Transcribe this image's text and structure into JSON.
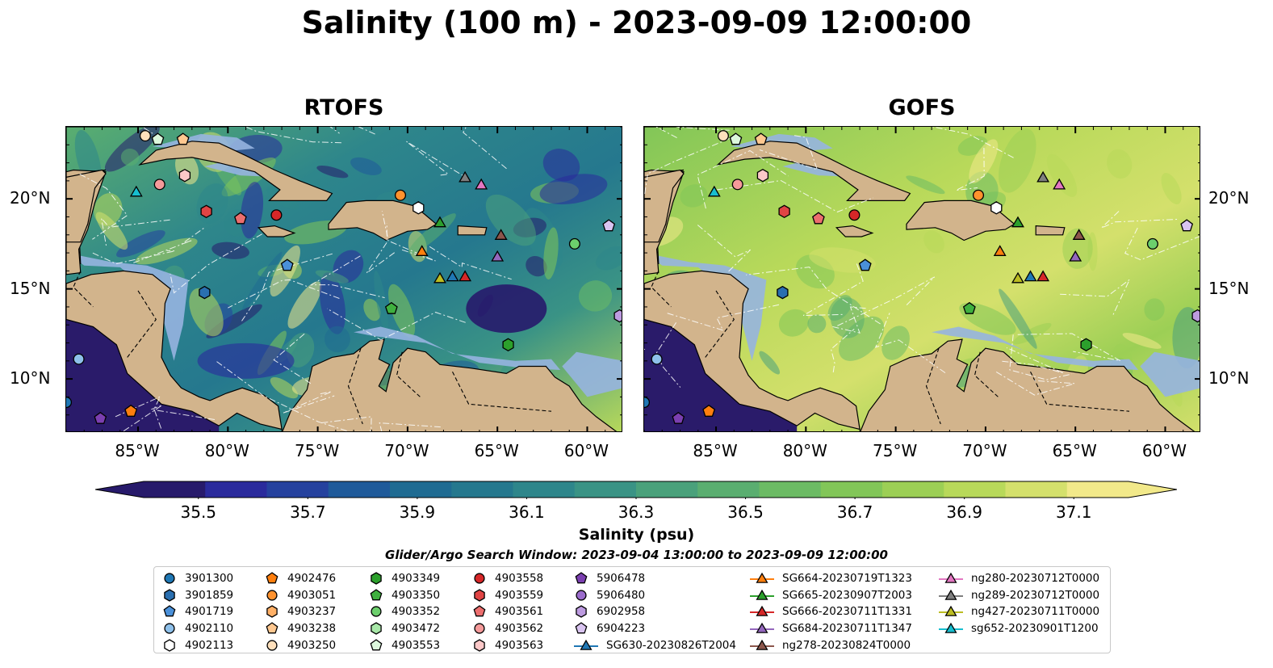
{
  "title": "Salinity (100 m) - 2023-09-09 12:00:00",
  "panels": [
    {
      "title": "RTOFS"
    },
    {
      "title": "GOFS"
    }
  ],
  "map": {
    "lon_range": [
      -89,
      -58
    ],
    "lat_range": [
      7,
      24
    ],
    "x_ticks": [
      "85°W",
      "80°W",
      "75°W",
      "70°W",
      "65°W",
      "60°W"
    ],
    "x_tick_values": [
      -85,
      -80,
      -75,
      -70,
      -65,
      -60
    ],
    "y_ticks": [
      "20°N",
      "15°N",
      "10°N"
    ],
    "y_tick_values": [
      20,
      15,
      10
    ],
    "colors": {
      "land": "#d2b48c",
      "shelf": "#96b4e0",
      "deep_pacific": "#2a1b6a",
      "coast": "#000000"
    }
  },
  "colorbar": {
    "label": "Salinity (psu)",
    "ticks": [
      "35.5",
      "35.7",
      "35.9",
      "36.1",
      "36.3",
      "36.5",
      "36.7",
      "36.9",
      "37.1"
    ],
    "min": 35.4,
    "max": 37.2,
    "colors": [
      "#271a6b",
      "#2a2a9c",
      "#25419e",
      "#1f5a9a",
      "#1f6b92",
      "#25788e",
      "#2e868b",
      "#3a9385",
      "#4aa17b",
      "#5aae70",
      "#6cbb64",
      "#82c658",
      "#9ccf55",
      "#b8d95a",
      "#d4e06c",
      "#f2e98a"
    ]
  },
  "search_window": "Glider/Argo Search Window: 2023-09-04 13:00:00 to 2023-09-09 12:00:00",
  "legend": {
    "columns": [
      [
        {
          "label": "3901300",
          "marker": "circle",
          "color": "#1f77b4"
        },
        {
          "label": "3901859",
          "marker": "hexagon",
          "color": "#2a6fb0"
        },
        {
          "label": "4901719",
          "marker": "pentagon",
          "color": "#4a90d9"
        },
        {
          "label": "4902110",
          "marker": "circle",
          "color": "#8ec0ea"
        },
        {
          "label": "4902113",
          "marker": "hexagon",
          "color": "#ffffff"
        }
      ],
      [
        {
          "label": "4902476",
          "marker": "pentagon",
          "color": "#ff7f0e"
        },
        {
          "label": "4903051",
          "marker": "circle",
          "color": "#ff922e"
        },
        {
          "label": "4903237",
          "marker": "hexagon",
          "color": "#ffb066"
        },
        {
          "label": "4903238",
          "marker": "pentagon",
          "color": "#ffc890"
        },
        {
          "label": "4903250",
          "marker": "circle",
          "color": "#ffe0bc"
        }
      ],
      [
        {
          "label": "4903349",
          "marker": "hexagon",
          "color": "#2ca02c"
        },
        {
          "label": "4903350",
          "marker": "pentagon",
          "color": "#3fb03f"
        },
        {
          "label": "4903352",
          "marker": "circle",
          "color": "#6ccf6c"
        },
        {
          "label": "4903472",
          "marker": "hexagon",
          "color": "#a8e8a8"
        },
        {
          "label": "4903553",
          "marker": "pentagon",
          "color": "#dcf8dc"
        }
      ],
      [
        {
          "label": "4903558",
          "marker": "circle",
          "color": "#d62728"
        },
        {
          "label": "4903559",
          "marker": "hexagon",
          "color": "#e04444"
        },
        {
          "label": "4903561",
          "marker": "pentagon",
          "color": "#ec6e6e"
        },
        {
          "label": "4903562",
          "marker": "circle",
          "color": "#f59a9a"
        },
        {
          "label": "4903563",
          "marker": "hexagon",
          "color": "#fcc8c8"
        }
      ],
      [
        {
          "label": "5906478",
          "marker": "pentagon",
          "color": "#7b3fb0"
        },
        {
          "label": "5906480",
          "marker": "circle",
          "color": "#9b6ccc"
        },
        {
          "label": "6902958",
          "marker": "hexagon",
          "color": "#bd9be0"
        },
        {
          "label": "6904223",
          "marker": "pentagon",
          "color": "#d9c4f0"
        },
        {
          "label": "SG630-20230826T2004",
          "marker": "triangle-line",
          "color": "#1f77b4"
        }
      ],
      [
        {
          "label": "SG664-20230719T1323",
          "marker": "triangle-line",
          "color": "#ff7f0e"
        },
        {
          "label": "SG665-20230907T2003",
          "marker": "triangle-line",
          "color": "#2ca02c"
        },
        {
          "label": "SG666-20230711T1331",
          "marker": "triangle-line",
          "color": "#d62728"
        },
        {
          "label": "SG684-20230711T1347",
          "marker": "triangle-line",
          "color": "#9467bd"
        },
        {
          "label": "ng278-20230824T0000",
          "marker": "triangle-line",
          "color": "#8c564b"
        }
      ],
      [
        {
          "label": "ng280-20230712T0000",
          "marker": "triangle-line",
          "color": "#e377c2"
        },
        {
          "label": "ng289-20230712T0000",
          "marker": "triangle-line",
          "color": "#7f7f7f"
        },
        {
          "label": "ng427-20230711T0000",
          "marker": "triangle-line",
          "color": "#bcbd22"
        },
        {
          "label": "sg652-20230901T1200",
          "marker": "triangle-line",
          "color": "#17becf"
        }
      ]
    ]
  },
  "platforms": [
    {
      "id": "3901300",
      "lon": -89.0,
      "lat": 8.7,
      "marker": "circle",
      "color": "#1f77b4"
    },
    {
      "id": "4903250",
      "lon": -84.6,
      "lat": 23.5,
      "marker": "circle",
      "color": "#ffe0bc"
    },
    {
      "id": "4903553",
      "lon": -83.9,
      "lat": 23.3,
      "marker": "pentagon",
      "color": "#dcf8dc"
    },
    {
      "id": "4903238",
      "lon": -82.5,
      "lat": 23.3,
      "marker": "pentagon",
      "color": "#ffc890"
    },
    {
      "id": "4903562",
      "lon": -83.8,
      "lat": 20.8,
      "marker": "circle",
      "color": "#f59a9a"
    },
    {
      "id": "4903563",
      "lon": -82.4,
      "lat": 21.3,
      "marker": "hexagon",
      "color": "#fcc8c8"
    },
    {
      "id": "sg652-20230901T1200",
      "lon": -85.1,
      "lat": 20.4,
      "marker": "triangle",
      "color": "#17becf"
    },
    {
      "id": "4903559",
      "lon": -81.2,
      "lat": 19.3,
      "marker": "hexagon",
      "color": "#e04444"
    },
    {
      "id": "4903561",
      "lon": -79.3,
      "lat": 18.9,
      "marker": "pentagon",
      "color": "#ec6e6e"
    },
    {
      "id": "4903558",
      "lon": -77.3,
      "lat": 19.1,
      "marker": "circle",
      "color": "#d62728"
    },
    {
      "id": "4903051",
      "lon": -70.4,
      "lat": 20.2,
      "marker": "circle",
      "color": "#ff922e"
    },
    {
      "id": "4902113",
      "lon": -69.4,
      "lat": 19.5,
      "marker": "hexagon",
      "color": "#ffffff"
    },
    {
      "id": "ng289-20230712T0000",
      "lon": -66.8,
      "lat": 21.2,
      "marker": "triangle",
      "color": "#7f7f7f"
    },
    {
      "id": "ng280-20230712T0000",
      "lon": -65.9,
      "lat": 20.8,
      "marker": "triangle",
      "color": "#e377c2"
    },
    {
      "id": "SG665-20230907T2003",
      "lon": -68.2,
      "lat": 18.7,
      "marker": "triangle",
      "color": "#2ca02c"
    },
    {
      "id": "ng278-20230824T0000",
      "lon": -64.8,
      "lat": 18.0,
      "marker": "triangle",
      "color": "#8c564b"
    },
    {
      "id": "SG664-20230719T1323",
      "lon": -69.2,
      "lat": 17.1,
      "marker": "triangle",
      "color": "#ff7f0e"
    },
    {
      "id": "SG684-20230711T1347",
      "lon": -65.0,
      "lat": 16.8,
      "marker": "triangle",
      "color": "#9467bd"
    },
    {
      "id": "4903352",
      "lon": -60.7,
      "lat": 17.5,
      "marker": "circle",
      "color": "#6ccf6c"
    },
    {
      "id": "6904223",
      "lon": -58.8,
      "lat": 18.5,
      "marker": "pentagon",
      "color": "#d9c4f0"
    },
    {
      "id": "4901719",
      "lon": -76.7,
      "lat": 16.3,
      "marker": "pentagon",
      "color": "#4a90d9"
    },
    {
      "id": "ng427-20230711T0000",
      "lon": -68.2,
      "lat": 15.6,
      "marker": "triangle",
      "color": "#bcbd22"
    },
    {
      "id": "SG630-20230826T2004",
      "lon": -67.5,
      "lat": 15.7,
      "marker": "triangle",
      "color": "#1f77b4"
    },
    {
      "id": "SG666-20230711T1331",
      "lon": -66.8,
      "lat": 15.7,
      "marker": "triangle",
      "color": "#d62728"
    },
    {
      "id": "3901859",
      "lon": -81.3,
      "lat": 14.8,
      "marker": "hexagon",
      "color": "#2a6fb0"
    },
    {
      "id": "4903350",
      "lon": -70.9,
      "lat": 13.9,
      "marker": "pentagon",
      "color": "#3fb03f"
    },
    {
      "id": "6902958",
      "lon": -58.2,
      "lat": 13.5,
      "marker": "hexagon",
      "color": "#bd9be0"
    },
    {
      "id": "4903349",
      "lon": -64.4,
      "lat": 11.9,
      "marker": "hexagon",
      "color": "#2ca02c"
    },
    {
      "id": "4902110",
      "lon": -88.3,
      "lat": 11.1,
      "marker": "circle",
      "color": "#8ec0ea"
    },
    {
      "id": "5906478",
      "lon": -87.1,
      "lat": 7.8,
      "marker": "pentagon",
      "color": "#7b3fb0"
    },
    {
      "id": "4902476",
      "lon": -85.4,
      "lat": 8.2,
      "marker": "pentagon",
      "color": "#ff7f0e"
    }
  ]
}
